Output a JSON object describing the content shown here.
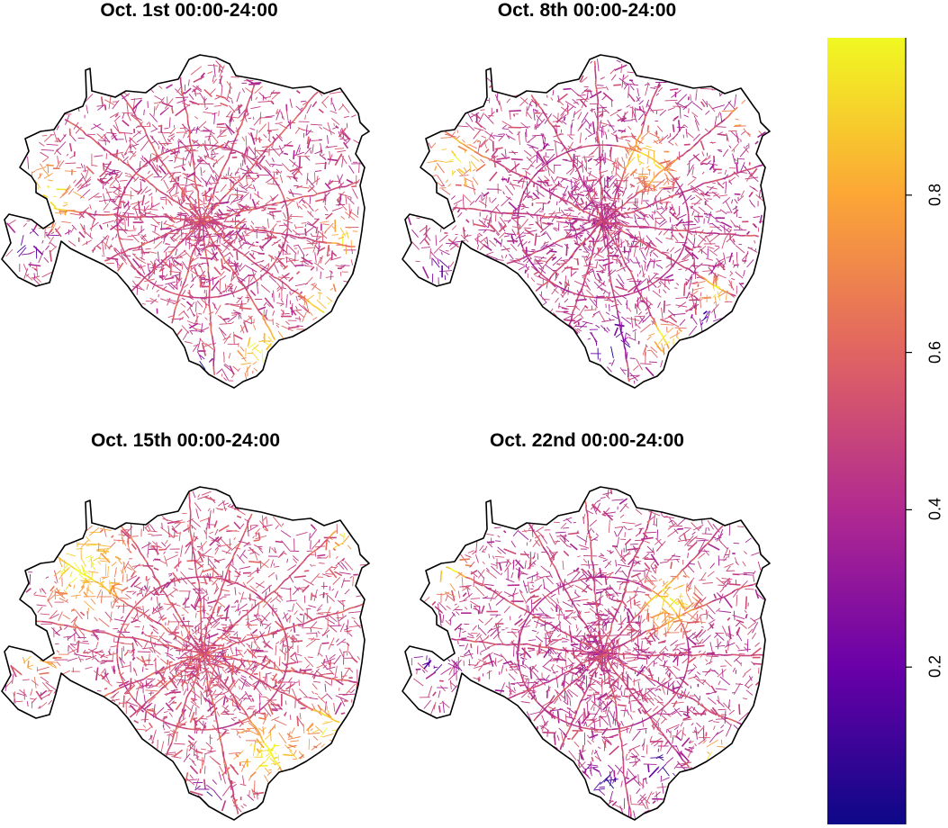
{
  "panels": [
    {
      "title": "Oct. 1st 00:00-24:00"
    },
    {
      "title": "Oct. 8th 00:00-24:00"
    },
    {
      "title": "Oct. 15th 00:00-24:00"
    },
    {
      "title": "Oct. 22nd 00:00-24:00"
    }
  ],
  "colorbar": {
    "palette": "plasma",
    "stops": [
      "#0d0887",
      "#6a00a8",
      "#b12a90",
      "#e16462",
      "#fca636",
      "#f0f921"
    ],
    "range": [
      0.0,
      1.0
    ],
    "ticks": [
      {
        "value": 0.2,
        "label": "0.2"
      },
      {
        "value": 0.4,
        "label": "0.4"
      },
      {
        "value": 0.6,
        "label": "0.6"
      },
      {
        "value": 0.8,
        "label": "0.8"
      }
    ]
  },
  "boundary_color": "#000000"
}
